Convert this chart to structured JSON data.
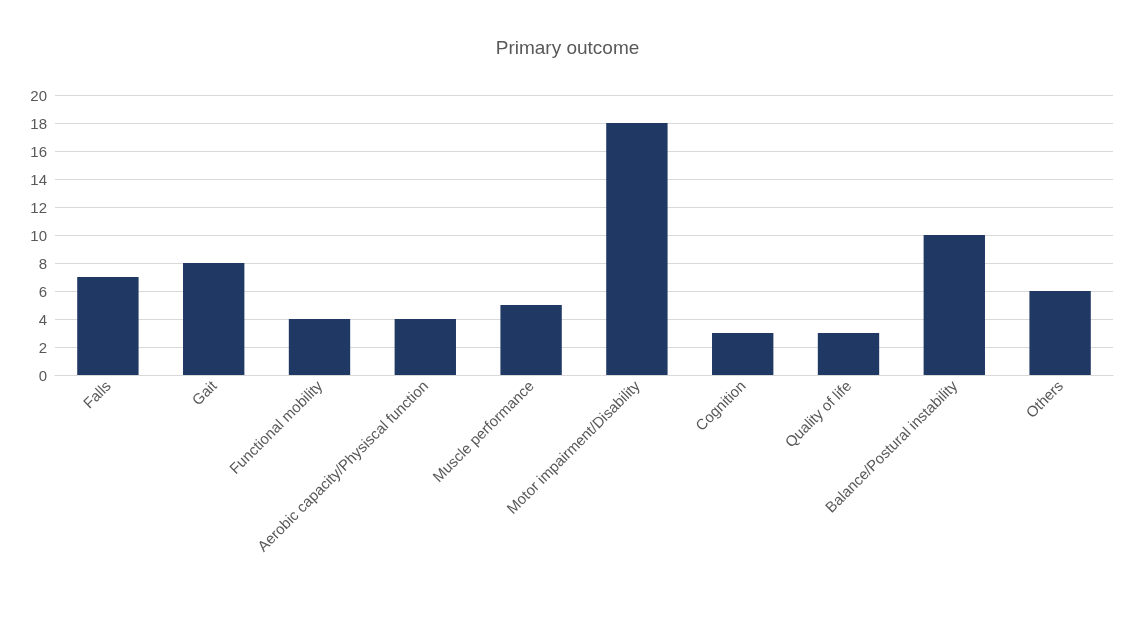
{
  "chart_data": {
    "type": "bar",
    "title": "Primary outcome",
    "categories": [
      "Falls",
      "Gait",
      "Functional mobility",
      "Aerobic capacity/Physiscal function",
      "Muscle performance",
      "Motor impairment/Disability",
      "Cognition",
      "Quality of life",
      "Balance/Postural instability",
      "Others"
    ],
    "values": [
      7,
      8,
      4,
      4,
      5,
      18,
      3,
      3,
      10,
      6
    ],
    "color": "#1f3864",
    "ylim": [
      0,
      20
    ],
    "yticks": [
      0,
      2,
      4,
      6,
      8,
      10,
      12,
      14,
      16,
      18,
      20
    ],
    "grid": "y"
  }
}
